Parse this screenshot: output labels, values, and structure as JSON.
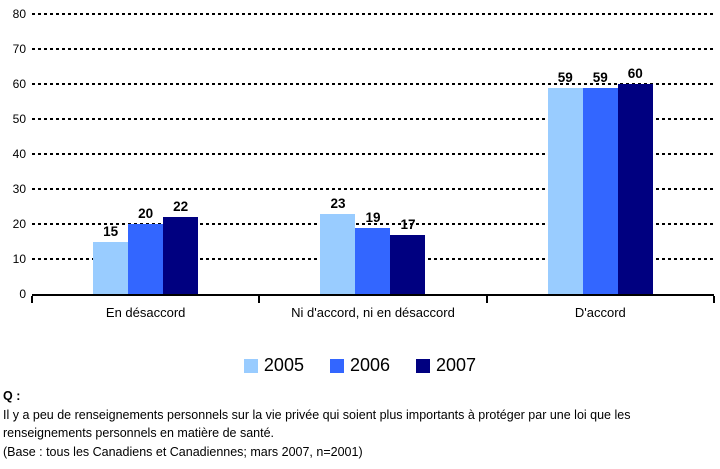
{
  "chart_data": {
    "type": "bar",
    "title": "",
    "categories": [
      "En désaccord",
      "Ni d'accord, ni en désaccord",
      "D'accord"
    ],
    "series": [
      {
        "name": "2005",
        "color": "#99CCFF",
        "values": [
          15,
          23,
          59
        ]
      },
      {
        "name": "2006",
        "color": "#3366FF",
        "values": [
          20,
          19,
          59
        ]
      },
      {
        "name": "2007",
        "color": "#000080",
        "values": [
          22,
          17,
          60
        ]
      }
    ],
    "ylim": [
      0,
      80
    ],
    "yticks": [
      0,
      10,
      20,
      30,
      40,
      50,
      60,
      70,
      80
    ],
    "grid": "horizontal-dotted",
    "legend_position": "bottom",
    "value_labels": "bold above bars"
  },
  "footer": {
    "q_label": "Q :",
    "question": "Il y a peu de renseignements personnels sur la vie privée qui soient plus importants à protéger par une loi que les renseignements personnels en matière de santé.",
    "base": "(Base : tous les Canadiens et Canadiennes; mars 2007, n=2001)"
  }
}
